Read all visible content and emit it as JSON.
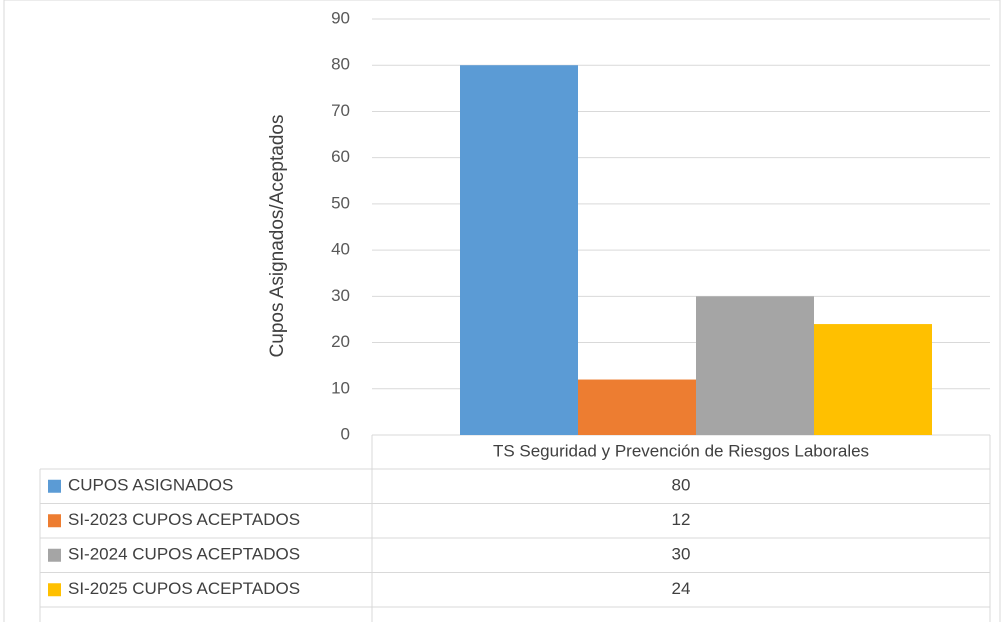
{
  "chart_data": {
    "type": "bar",
    "title": "",
    "xlabel": "",
    "ylabel": "Cupos Asignados/Aceptados",
    "ylim": [
      0,
      90
    ],
    "ytick_step": 10,
    "yticks": [
      "0",
      "10",
      "20",
      "30",
      "40",
      "50",
      "60",
      "70",
      "80",
      "90"
    ],
    "grid": true,
    "legend": "data-table",
    "categories": [
      "TS Seguridad y Prevención de Riesgos Laborales"
    ],
    "series": [
      {
        "name": "CUPOS ASIGNADOS",
        "values": [
          80
        ],
        "value_labels": [
          "80"
        ],
        "color": "#5B9BD5"
      },
      {
        "name": "SI-2023 CUPOS ACEPTADOS",
        "values": [
          12
        ],
        "value_labels": [
          "12"
        ],
        "color": "#ED7D31"
      },
      {
        "name": "SI-2024 CUPOS ACEPTADOS",
        "values": [
          30
        ],
        "value_labels": [
          "30"
        ],
        "color": "#A5A5A5"
      },
      {
        "name": "SI-2025 CUPOS ACEPTADOS",
        "values": [
          24
        ],
        "value_labels": [
          "24"
        ],
        "color": "#FFC000"
      }
    ]
  }
}
